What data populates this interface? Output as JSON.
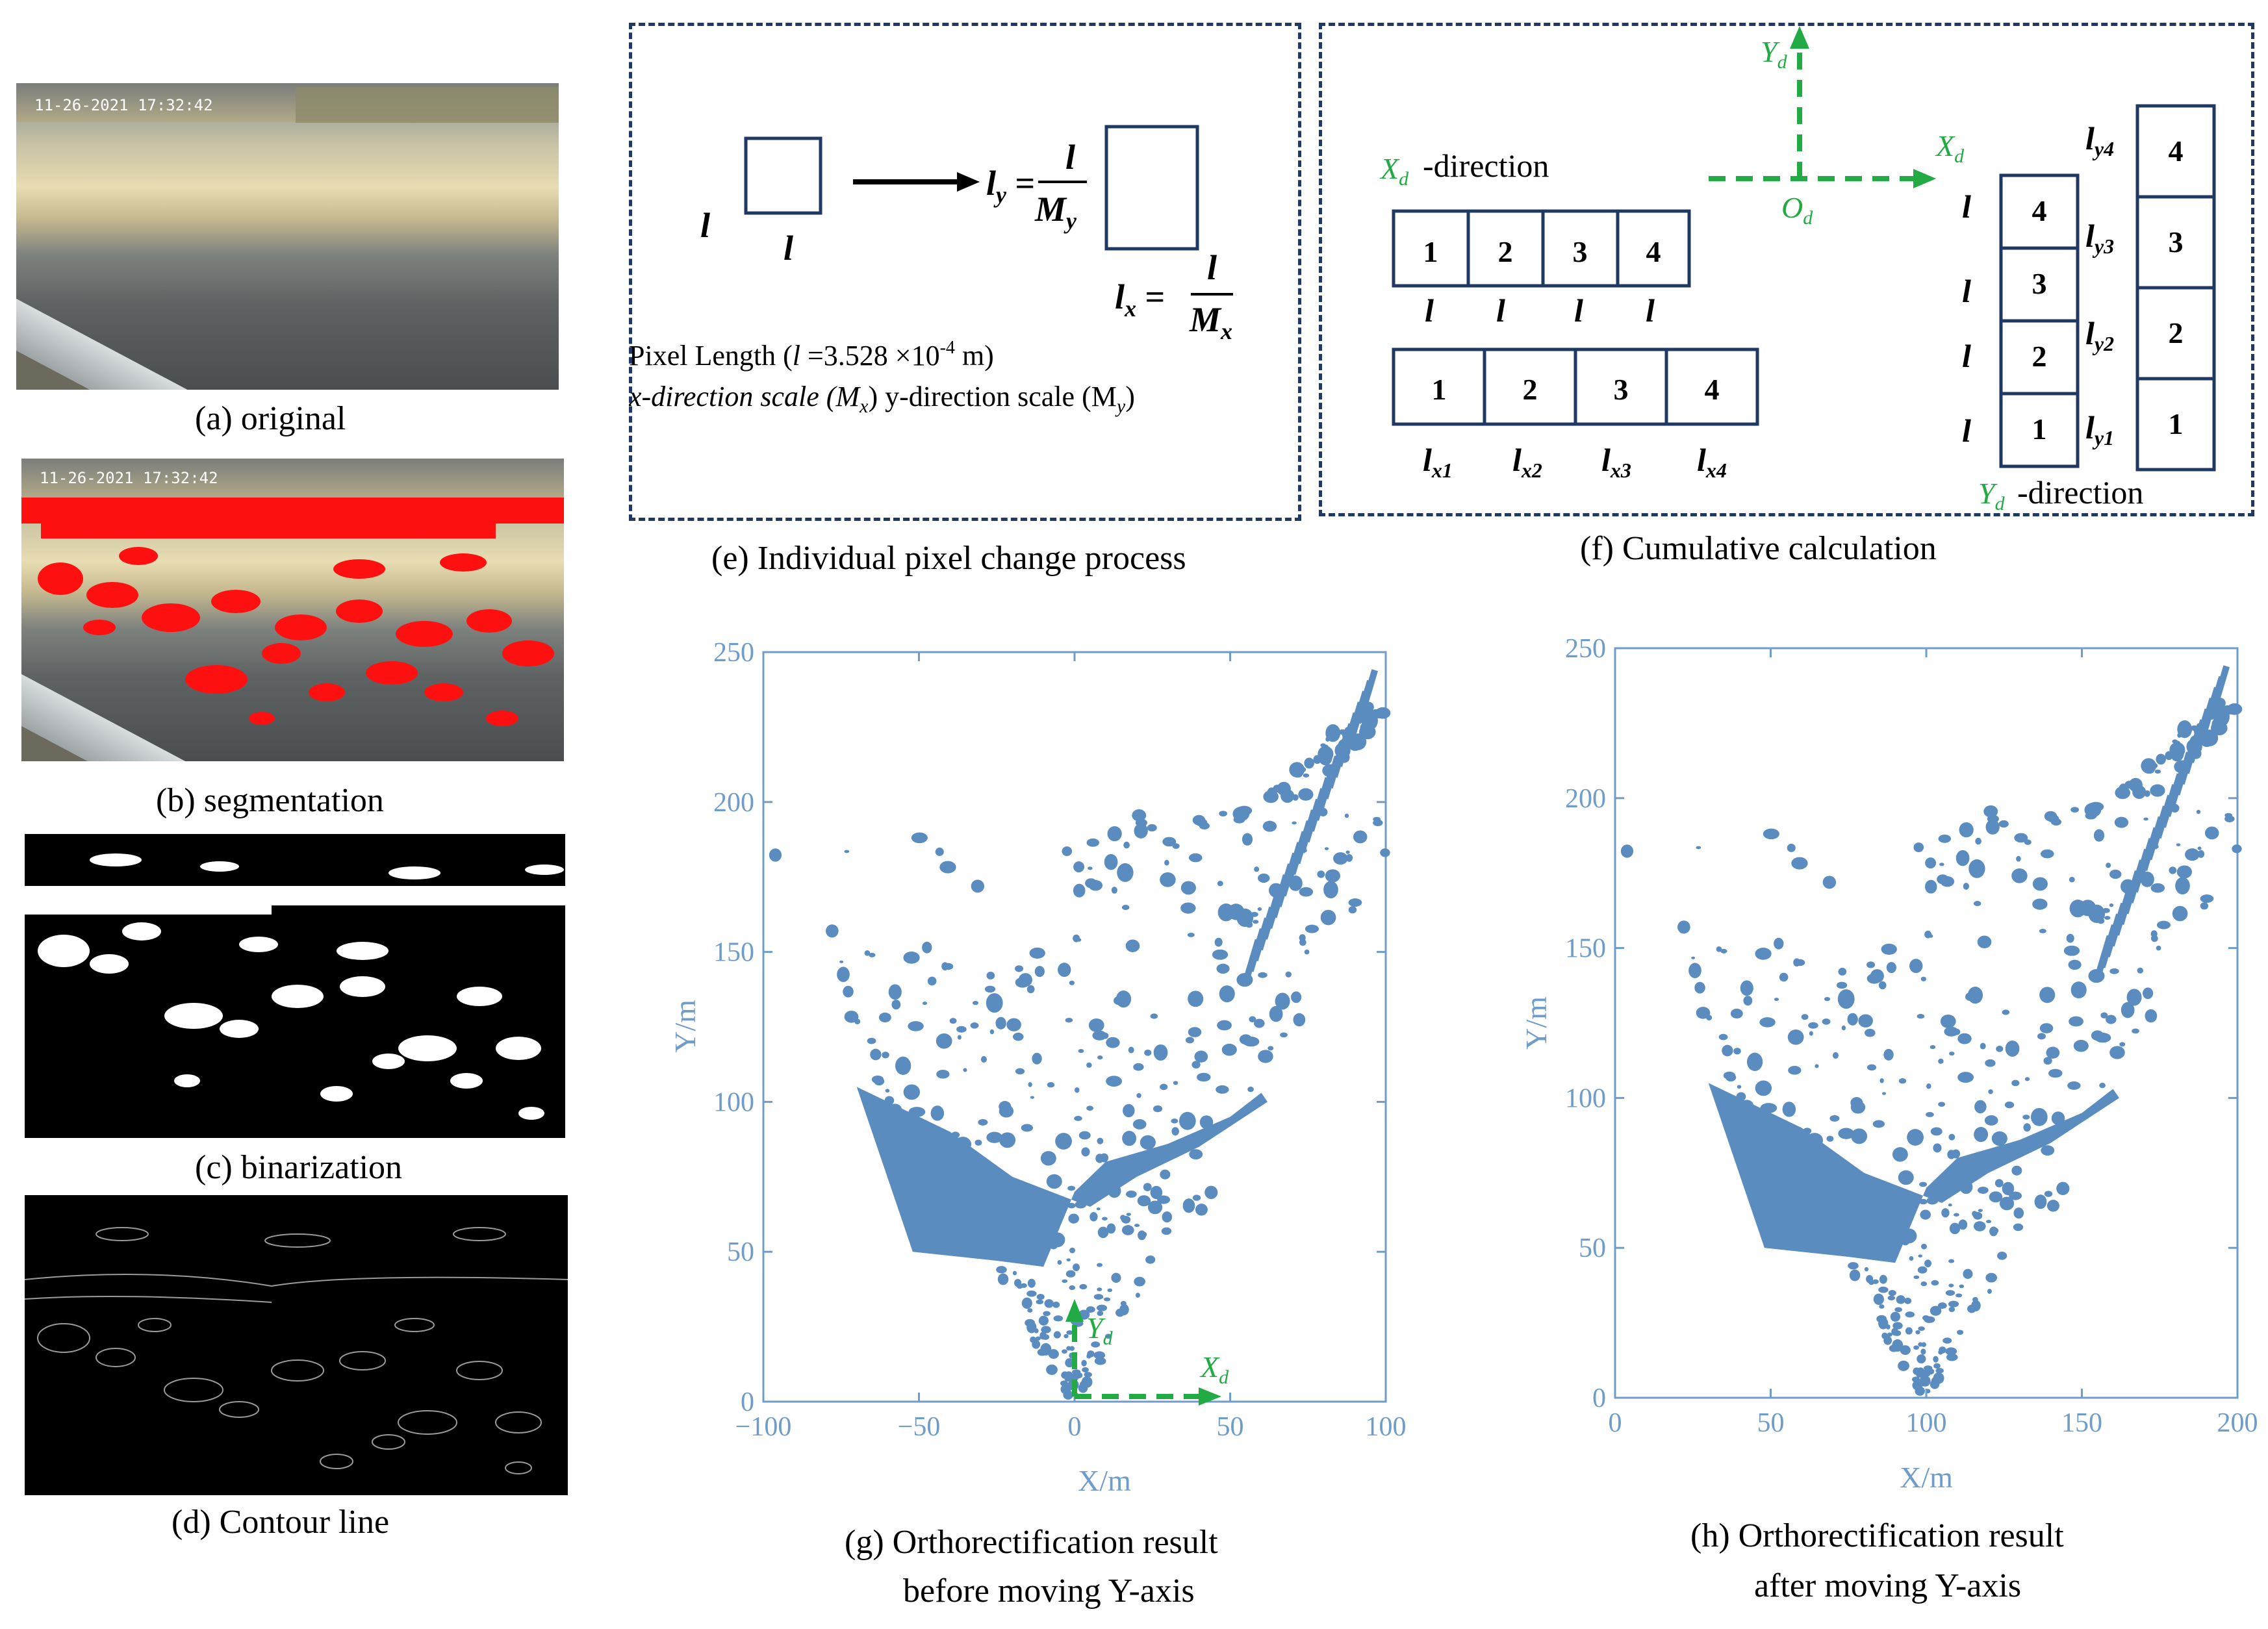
{
  "timestamp": "11-26-2021 17:32:42",
  "captions": {
    "a": "(a) original",
    "b": "(b) segmentation",
    "c": "(c) binarization",
    "d": "(d) Contour line",
    "e": "(e) Individual pixel change process",
    "f": "(f) Cumulative calculation",
    "g1": "(g) Orthorectification result",
    "g2": "before moving Y-axis",
    "h1": "(h) Orthorectification result",
    "h2": "after moving Y-axis"
  },
  "panel_e": {
    "pixel_length_text": "Pixel Length (",
    "pixel_length_sym": "l",
    "pixel_length_value": " =3.528 ×10",
    "pixel_length_exp": "-4",
    "pixel_length_unit": "  m)",
    "scale_x_text": "x-direction scale (M",
    "scale_x_sub": "x",
    "scale_y_text": ") y-direction scale (M",
    "scale_y_sub": "y",
    "scale_end": ")"
  },
  "panel_f": {
    "xd_label": "X",
    "d_sub": "d",
    "xd_direction": "-direction",
    "yd_direction": "-direction",
    "origin": "O",
    "row1": [
      "1",
      "2",
      "3",
      "4"
    ],
    "row1_labels": [
      "l",
      "l",
      "l",
      "l"
    ],
    "row2": [
      "1",
      "2",
      "3",
      "4"
    ],
    "row2_labels": [
      "l",
      "l",
      "l",
      "l"
    ],
    "row2_subs": [
      "x1",
      "x2",
      "x3",
      "x4"
    ],
    "col1": [
      "4",
      "3",
      "2",
      "1"
    ],
    "col2": [
      "4",
      "3",
      "2",
      "1"
    ],
    "col2_subs": [
      "y4",
      "y3",
      "y2",
      "y1"
    ]
  },
  "plots": {
    "xlabel": "X/m",
    "ylabel": "Y/m",
    "g_yticks": [
      "0",
      "50",
      "100",
      "150",
      "200",
      "250"
    ],
    "g_xticks": [
      "−100",
      "−50",
      "0",
      "50",
      "100"
    ],
    "h_yticks": [
      "0",
      "50",
      "100",
      "150",
      "200",
      "250"
    ],
    "h_xticks": [
      "0",
      "50",
      "100",
      "150",
      "200"
    ],
    "color": "#5b8cbf",
    "axis_color": "#6f9cc8"
  },
  "chart_data": [
    {
      "type": "scatter",
      "xlabel": "X/m",
      "ylabel": "Y/m",
      "xlim": [
        -100,
        100
      ],
      "ylim": [
        0,
        250
      ],
      "annotations": [
        "Y_d",
        "X_d"
      ]
    },
    {
      "type": "scatter",
      "xlabel": "X/m",
      "ylabel": "Y/m",
      "xlim": [
        0,
        200
      ],
      "ylim": [
        0,
        250
      ]
    }
  ]
}
